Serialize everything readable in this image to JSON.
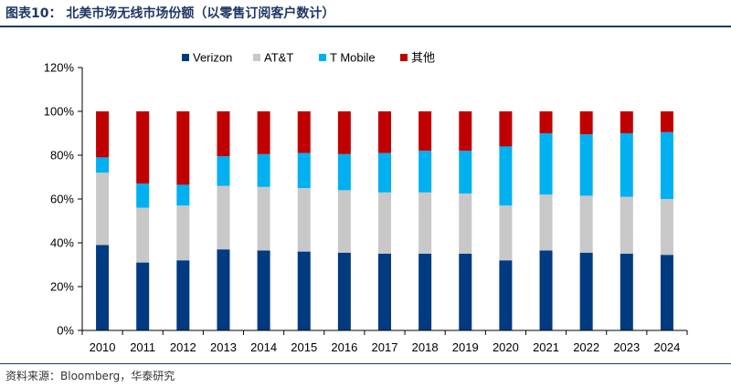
{
  "header": {
    "title": "图表10：  北美市场无线市场份额（以零售订阅客户数计）"
  },
  "footer": {
    "source": "资料来源：Bloomberg，华泰研究"
  },
  "chart_data": {
    "type": "bar",
    "stacked": true,
    "categories": [
      "2010",
      "2011",
      "2012",
      "2013",
      "2014",
      "2015",
      "2016",
      "2017",
      "2018",
      "2019",
      "2020",
      "2021",
      "2022",
      "2023",
      "2024"
    ],
    "series": [
      {
        "name": "Verizon",
        "color": "#003a80",
        "values": [
          0.39,
          0.31,
          0.32,
          0.37,
          0.365,
          0.36,
          0.355,
          0.35,
          0.35,
          0.35,
          0.32,
          0.365,
          0.355,
          0.35,
          0.345
        ]
      },
      {
        "name": "AT&T",
        "color": "#c8c8c8",
        "values": [
          0.33,
          0.25,
          0.25,
          0.29,
          0.29,
          0.29,
          0.285,
          0.28,
          0.28,
          0.275,
          0.25,
          0.255,
          0.26,
          0.26,
          0.255
        ]
      },
      {
        "name": "T Mobile",
        "color": "#00b0f0",
        "values": [
          0.07,
          0.11,
          0.095,
          0.135,
          0.15,
          0.16,
          0.165,
          0.18,
          0.19,
          0.195,
          0.27,
          0.28,
          0.28,
          0.29,
          0.305
        ]
      },
      {
        "name": "其他",
        "color": "#c00000",
        "values": [
          0.21,
          0.33,
          0.335,
          0.205,
          0.195,
          0.19,
          0.195,
          0.19,
          0.18,
          0.18,
          0.16,
          0.1,
          0.105,
          0.1,
          0.095
        ]
      }
    ],
    "y_ticks": [
      "0%",
      "20%",
      "40%",
      "60%",
      "80%",
      "100%",
      "120%"
    ],
    "ylim": [
      0,
      1.2
    ],
    "legend_position": "top",
    "grid": false
  }
}
